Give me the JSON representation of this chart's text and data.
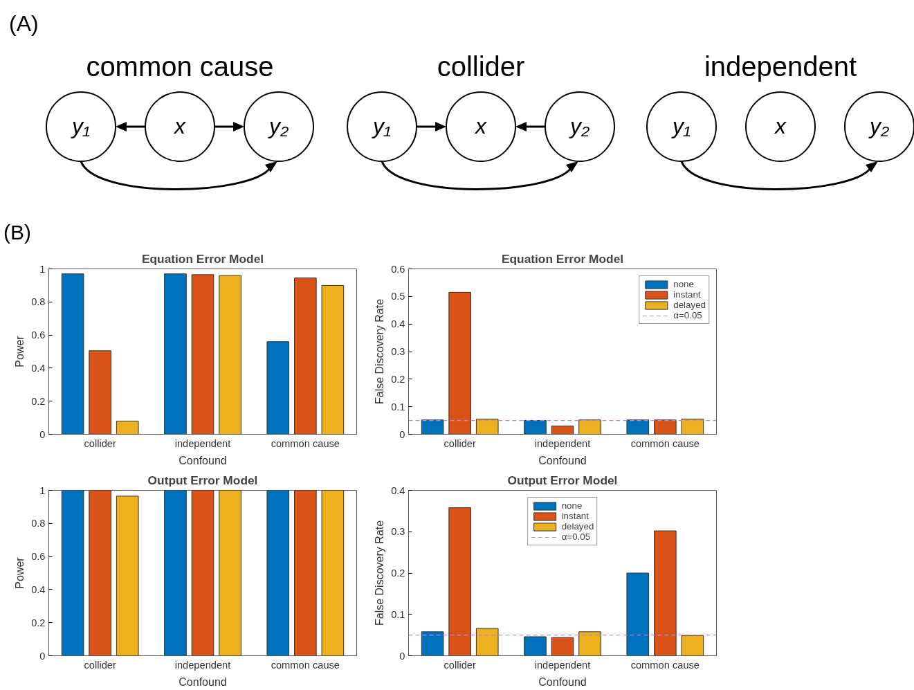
{
  "chart_data": [
    {
      "type": "other",
      "title": "(A)",
      "annotations": [
        "common cause",
        "collider",
        "independent",
        "y₁",
        "x",
        "y₂",
        "y₁",
        "x",
        "y₂",
        "y₁",
        "x",
        "y₂"
      ]
    },
    {
      "type": "bar",
      "title": "Equation Error Model",
      "xlabel": "Confound",
      "ylabel": "Power",
      "annotations": [
        "(B)"
      ],
      "categories": [
        "collider",
        "independent",
        "common cause"
      ],
      "ylim": [
        0,
        1
      ],
      "yticks": [
        0,
        0.2,
        0.4,
        0.6,
        0.8,
        1
      ],
      "series": [
        {
          "color": "#0072bd",
          "values": [
            0.97,
            0.97,
            0.56
          ]
        },
        {
          "color": "#d95319",
          "values": [
            0.505,
            0.965,
            0.945
          ]
        },
        {
          "color": "#edb120",
          "values": [
            0.08,
            0.96,
            0.9
          ]
        }
      ]
    },
    {
      "type": "bar",
      "title": "Equation Error Model",
      "xlabel": "Confound",
      "ylabel": "False Discovery Rate",
      "categories": [
        "collider",
        "independent",
        "common cause"
      ],
      "ylim": [
        0,
        0.6
      ],
      "yticks": [
        0,
        0.1,
        0.2,
        0.3,
        0.4,
        0.5,
        0.6
      ],
      "legend": "top right",
      "series": [
        {
          "name": "none",
          "color": "#0072bd",
          "values": [
            0.052,
            0.05,
            0.052
          ]
        },
        {
          "name": "instant",
          "color": "#d95319",
          "values": [
            0.515,
            0.03,
            0.052
          ]
        },
        {
          "name": "delayed",
          "color": "#edb120",
          "values": [
            0.055,
            0.052,
            0.055
          ]
        }
      ],
      "ref_lines": [
        {
          "axis": "y",
          "value": 0.05,
          "label": "α=0.05",
          "color": "#b88ad0",
          "line_style": "dashed"
        }
      ]
    },
    {
      "type": "bar",
      "title": "Output Error Model",
      "xlabel": "Confound",
      "ylabel": "Power",
      "categories": [
        "collider",
        "independent",
        "common cause"
      ],
      "ylim": [
        0,
        1
      ],
      "yticks": [
        0,
        0.2,
        0.4,
        0.6,
        0.8,
        1
      ],
      "series": [
        {
          "color": "#0072bd",
          "values": [
            1,
            1,
            1
          ]
        },
        {
          "color": "#d95319",
          "values": [
            1,
            1,
            1
          ]
        },
        {
          "color": "#edb120",
          "values": [
            0.965,
            1,
            1
          ]
        }
      ]
    },
    {
      "type": "bar",
      "title": "Output Error Model",
      "xlabel": "Confound",
      "ylabel": "False Discovery Rate",
      "categories": [
        "collider",
        "independent",
        "common cause"
      ],
      "ylim": [
        0,
        0.4
      ],
      "yticks": [
        0,
        0.1,
        0.2,
        0.3,
        0.4
      ],
      "legend": "top",
      "series": [
        {
          "name": "none",
          "color": "#0072bd",
          "values": [
            0.058,
            0.046,
            0.2
          ]
        },
        {
          "name": "instant",
          "color": "#d95319",
          "values": [
            0.358,
            0.044,
            0.302
          ]
        },
        {
          "name": "delayed",
          "color": "#edb120",
          "values": [
            0.066,
            0.058,
            0.049
          ]
        }
      ],
      "ref_lines": [
        {
          "axis": "y",
          "value": 0.05,
          "label": "α=0.05",
          "color": "#b88ad0",
          "line_style": "dashed"
        }
      ]
    }
  ]
}
